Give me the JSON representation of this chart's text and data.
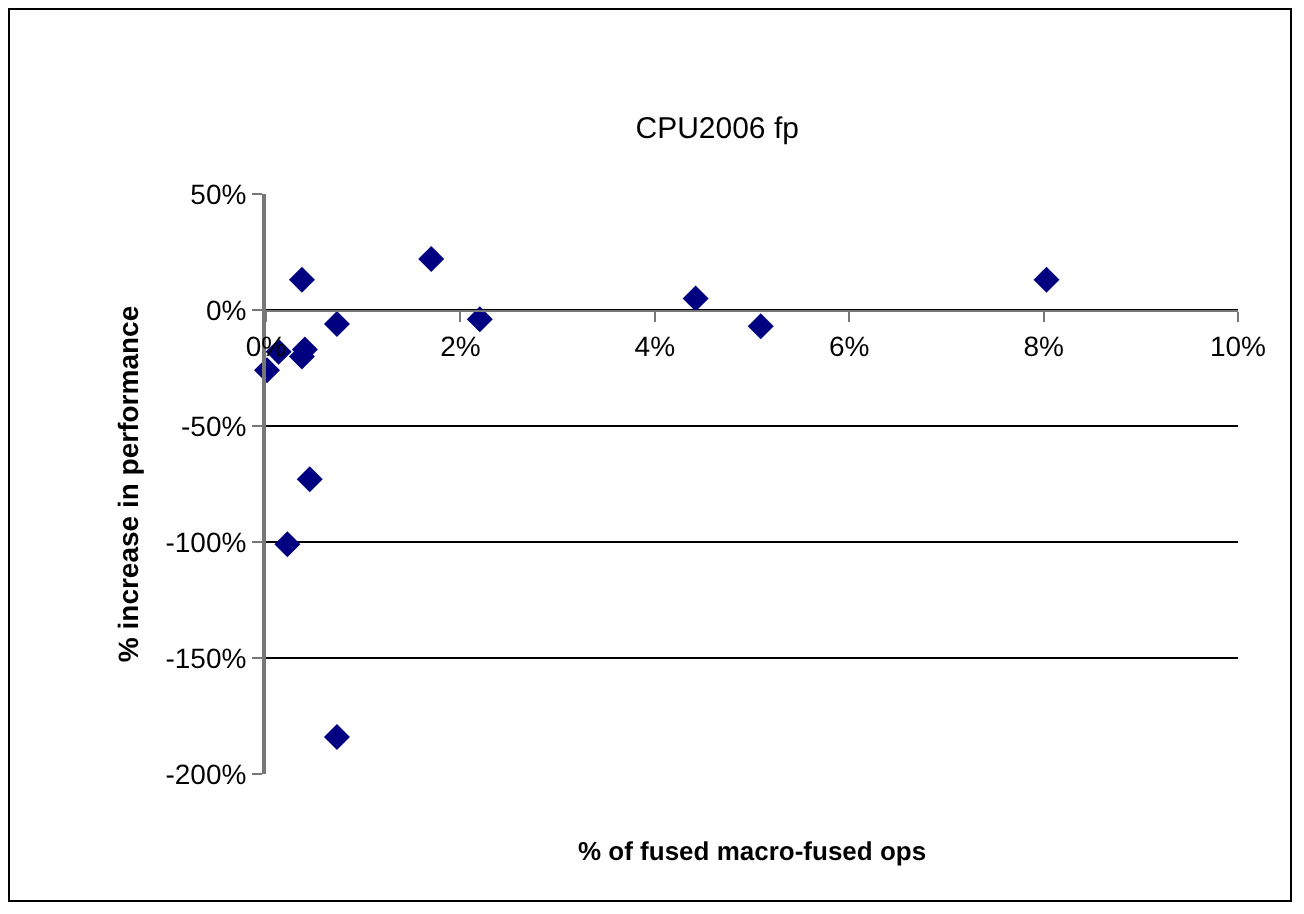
{
  "chart_data": {
    "type": "scatter",
    "title": "CPU2006 fp",
    "xlabel": "% of fused macro-fused ops",
    "ylabel": "% increase in performance",
    "x": [
      0.37,
      1.7,
      2.2,
      0.73,
      0.13,
      0.01,
      0.4,
      0.37,
      0.45,
      0.22,
      0.73,
      4.42,
      5.09,
      8.03
    ],
    "series": [
      {
        "color": "#000080",
        "values": [
          13,
          22,
          -4,
          -6,
          -18,
          -26,
          -17,
          -20,
          -73,
          -101,
          -184,
          5,
          -7,
          13
        ]
      }
    ],
    "xlim": [
      0,
      10
    ],
    "xticks": [
      {
        "value": 0,
        "label": "0%"
      },
      {
        "value": 2,
        "label": "2%"
      },
      {
        "value": 4,
        "label": "4%"
      },
      {
        "value": 6,
        "label": "6%"
      },
      {
        "value": 8,
        "label": "8%"
      },
      {
        "value": 10,
        "label": "10%"
      }
    ],
    "ylim": [
      -200,
      50
    ],
    "yticks": [
      {
        "value": -200,
        "label": "-200%"
      },
      {
        "value": -150,
        "label": "-150%"
      },
      {
        "value": -100,
        "label": "-100%"
      },
      {
        "value": -50,
        "label": "-50%"
      },
      {
        "value": 0,
        "label": "0%"
      },
      {
        "value": 50,
        "label": "50%"
      }
    ],
    "grid": "y",
    "marker": "diamond"
  }
}
